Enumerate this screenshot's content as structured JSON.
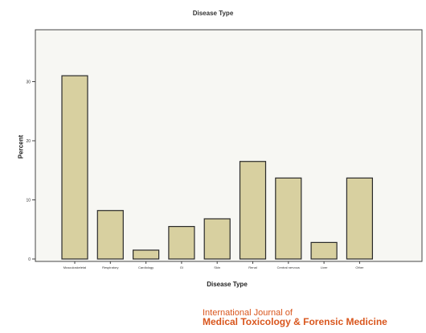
{
  "chart_data": {
    "type": "bar",
    "title": "Disease Type",
    "xlabel": "Disease Type",
    "ylabel": "Percent",
    "categories": [
      "Musculoskeletal",
      "Respiratory",
      "Cardiology",
      "GI",
      "Skin",
      "Renal",
      "Central nervous",
      "Liver",
      "Other"
    ],
    "values": [
      31,
      8.2,
      1.5,
      5.5,
      6.8,
      16.5,
      13.7,
      2.8,
      13.7
    ],
    "yticks": [
      0,
      10,
      20,
      30
    ],
    "ytick_labels": [
      "0",
      "10",
      "20",
      "30"
    ],
    "ylim": [
      0,
      36
    ],
    "bar_color": "#d8d0a0",
    "bar_edge": "#2a2a2a",
    "grid": false
  },
  "footer": {
    "journal_line1": "International Journal of",
    "journal_line2": "Medical Toxicology & Forensic Medicine",
    "color": "#d9561d"
  }
}
